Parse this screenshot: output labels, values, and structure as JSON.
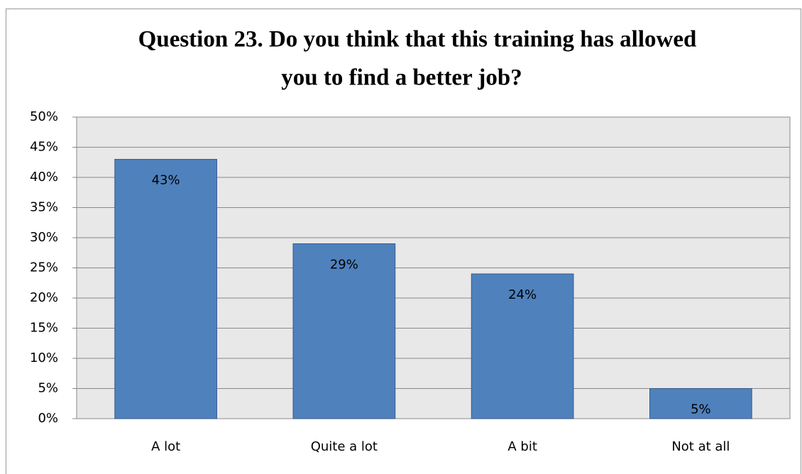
{
  "chart_data": {
    "type": "bar",
    "title": [
      "Question 23. Do you think that this training has allowed",
      "you to find a better job?"
    ],
    "categories": [
      "A lot",
      "Quite a lot",
      "A bit",
      "Not at all"
    ],
    "values": [
      43,
      29,
      24,
      5
    ],
    "value_labels": [
      "43%",
      "29%",
      "24%",
      "5%"
    ],
    "color": "#4f81bd",
    "ylim": [
      0,
      50
    ],
    "yticks": [
      {
        "value": 0,
        "label": "0%"
      },
      {
        "value": 5,
        "label": "5%"
      },
      {
        "value": 10,
        "label": "10%"
      },
      {
        "value": 15,
        "label": "15%"
      },
      {
        "value": 20,
        "label": "20%"
      },
      {
        "value": 25,
        "label": "25%"
      },
      {
        "value": 30,
        "label": "30%"
      },
      {
        "value": 35,
        "label": "35%"
      },
      {
        "value": 40,
        "label": "40%"
      },
      {
        "value": 45,
        "label": "45%"
      },
      {
        "value": 50,
        "label": "50%"
      }
    ],
    "grid": true
  }
}
